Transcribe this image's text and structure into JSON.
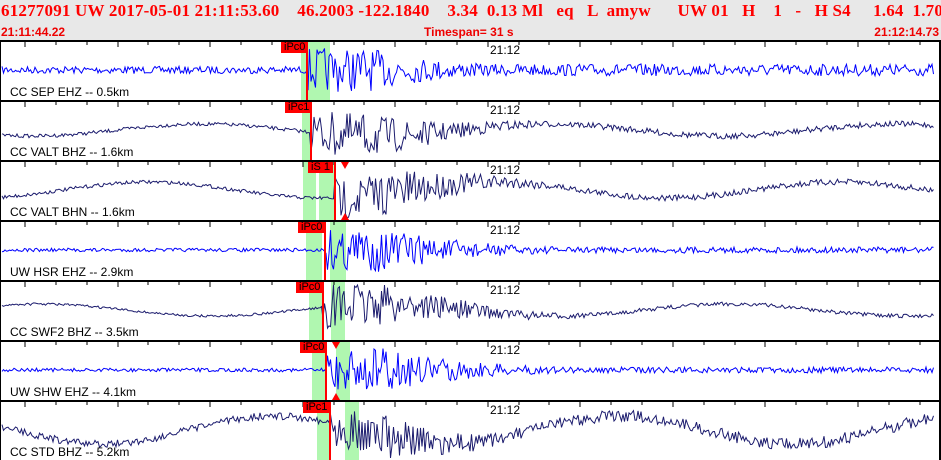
{
  "header": {
    "title": "61277091 UW 2017-05-01 21:11:53.60    46.2003 -122.1840    3.34  0.13 Ml   eq   L  amyw      UW 01   H    1   -   H S4     1.64  1.70",
    "start_time": "21:11:44.22",
    "timespan": "Timespan=  31 s",
    "end_time": "21:12:14.73"
  },
  "time_marker": "21:12",
  "colors": {
    "header_text": "#ff0000",
    "pick": "#ff0000",
    "window": "#b0f7b0",
    "ehz_trace": "#0000ff",
    "bh_trace": "#1c1c6e"
  },
  "panels": [
    {
      "label": "CC SEP EHZ -- 0.5km",
      "pick": "iPc0",
      "trace": "ehz_trace"
    },
    {
      "label": "CC VALT BHZ -- 1.6km",
      "pick": "iPc1",
      "trace": "bh_trace"
    },
    {
      "label": "CC VALT BHN -- 1.6km",
      "pick": "iS 1",
      "trace": "bh_trace"
    },
    {
      "label": "UW HSR EHZ -- 2.9km",
      "pick": "iPc0",
      "trace": "ehz_trace"
    },
    {
      "label": "CC SWF2 BHZ -- 3.5km",
      "pick": "iPc0",
      "trace": "bh_trace"
    },
    {
      "label": "UW SHW EHZ -- 4.1km",
      "pick": "iPc0",
      "trace": "ehz_trace"
    },
    {
      "label": "CC STD BHZ -- 5.2km",
      "pick": "iPc1",
      "trace": "bh_trace"
    }
  ]
}
